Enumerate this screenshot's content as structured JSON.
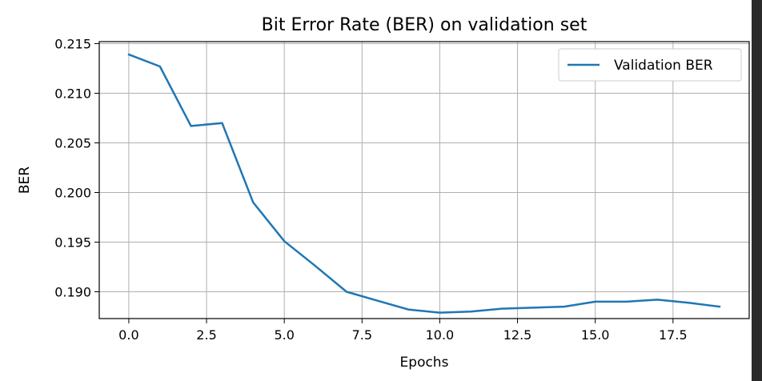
{
  "colors": {
    "window_background": "#2b2b2b",
    "figure_background": "#ffffff",
    "series_line": "#1f77b4",
    "grid": "#b0b0b0",
    "axis": "#000000"
  },
  "chart_data": {
    "type": "line",
    "title": "Bit Error Rate (BER) on validation set",
    "xlabel": "Epochs",
    "ylabel": "BER",
    "xlim": [
      -0.95,
      19.95
    ],
    "ylim": [
      0.1873,
      0.2152
    ],
    "grid": true,
    "legend": {
      "placement": "top-right",
      "entries": [
        "Validation BER"
      ]
    },
    "x_ticks": [
      0.0,
      2.5,
      5.0,
      7.5,
      10.0,
      12.5,
      15.0,
      17.5
    ],
    "x_tick_labels": [
      "0.0",
      "2.5",
      "5.0",
      "7.5",
      "10.0",
      "12.5",
      "15.0",
      "17.5"
    ],
    "y_ticks": [
      0.19,
      0.195,
      0.2,
      0.205,
      0.21,
      0.215
    ],
    "y_tick_labels": [
      "0.190",
      "0.195",
      "0.200",
      "0.205",
      "0.210",
      "0.215"
    ],
    "series": [
      {
        "name": "Validation BER",
        "x": [
          0,
          1,
          2,
          3,
          4,
          5,
          6,
          7,
          8,
          9,
          10,
          11,
          12,
          13,
          14,
          15,
          16,
          17,
          18,
          19
        ],
        "y": [
          0.2139,
          0.2127,
          0.2067,
          0.207,
          0.199,
          0.1951,
          0.1926,
          0.19,
          0.1891,
          0.1882,
          0.1879,
          0.188,
          0.1883,
          0.1884,
          0.1885,
          0.189,
          0.189,
          0.1892,
          0.1889,
          0.1885
        ]
      }
    ]
  }
}
